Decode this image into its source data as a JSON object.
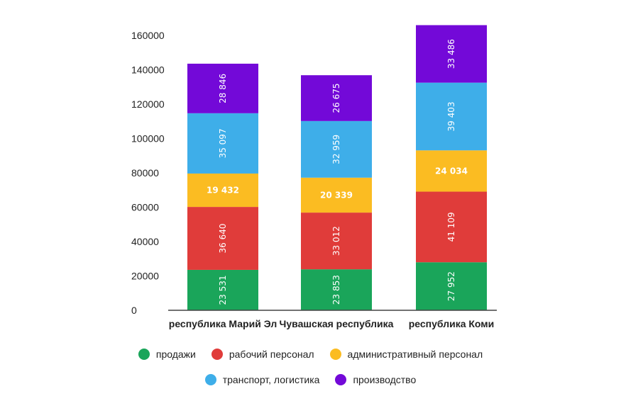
{
  "chart_data": {
    "type": "bar",
    "stacked": true,
    "title": "",
    "xlabel": "",
    "ylabel": "",
    "ylim": [
      0,
      160000
    ],
    "yticks": [
      0,
      20000,
      40000,
      60000,
      80000,
      100000,
      120000,
      140000,
      160000
    ],
    "grid": false,
    "categories": [
      "республика Марий Эл",
      "Чувашская республика",
      "республика Коми"
    ],
    "series": [
      {
        "name": "продажи",
        "color": "#1aa55a",
        "values": [
          23531,
          23853,
          27952
        ],
        "labels": [
          "23 531",
          "23 853",
          "27 952"
        ],
        "label_orientation": "vertical"
      },
      {
        "name": "рабочий персонал",
        "color": "#e03c3a",
        "values": [
          36640,
          33012,
          41109
        ],
        "labels": [
          "36 640",
          "33 012",
          "41 109"
        ],
        "label_orientation": "vertical"
      },
      {
        "name": "административный персонал",
        "color": "#fbbc22",
        "values": [
          19432,
          20339,
          24034
        ],
        "labels": [
          "19 432",
          "20 339",
          "24 034"
        ],
        "label_orientation": "horizontal"
      },
      {
        "name": "транспорт, логистика",
        "color": "#3eaee9",
        "values": [
          35097,
          32959,
          39403
        ],
        "labels": [
          "35 097",
          "32 959",
          "39 403"
        ],
        "label_orientation": "vertical"
      },
      {
        "name": "производство",
        "color": "#7309d8",
        "values": [
          28846,
          26675,
          33486
        ],
        "labels": [
          "28 846",
          "26 675",
          "33 486"
        ],
        "label_orientation": "vertical"
      }
    ],
    "legend_position": "bottom"
  }
}
